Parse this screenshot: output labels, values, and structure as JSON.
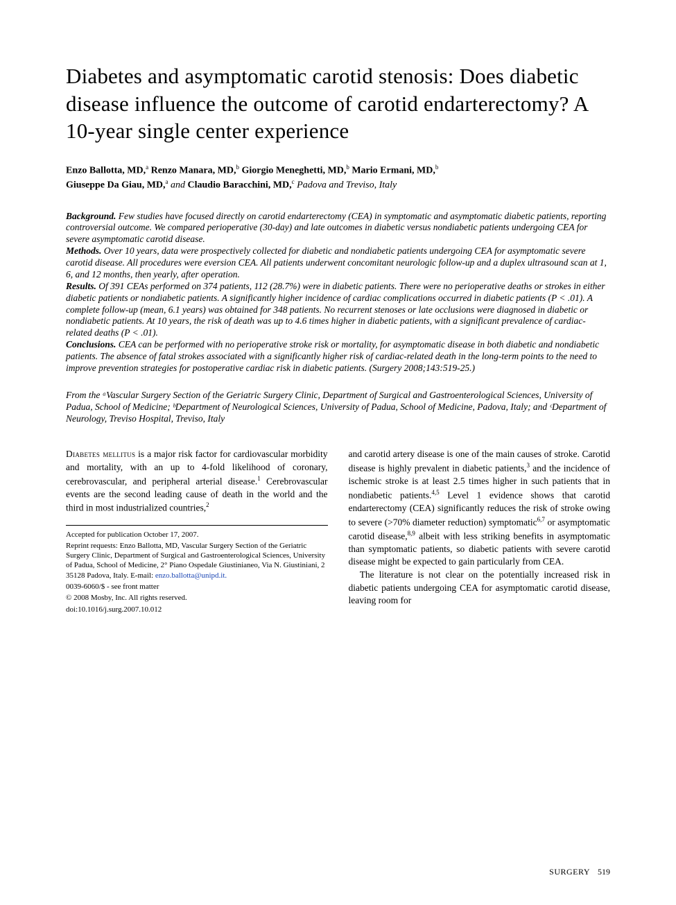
{
  "title": "Diabetes and asymptomatic carotid stenosis: Does diabetic disease influence the outcome of carotid endarterectomy? A 10-year single center experience",
  "authors_line_1": "Enzo Ballotta, MD,",
  "authors_aff_a": "a",
  "authors_line_2": " Renzo Manara, MD,",
  "authors_aff_b": "b",
  "authors_line_3": " Giorgio Meneghetti, MD,",
  "authors_line_4": " Mario Ermani, MD,",
  "authors_line_5": "Giuseppe Da Giau, MD,",
  "authors_and": " and ",
  "authors_line_6": "Claudio Baracchini, MD,",
  "authors_aff_c": "c",
  "authors_loc": " Padova and Treviso, Italy",
  "abstract": {
    "bg_head": "Background.",
    "bg_text": " Few studies have focused directly on carotid endarterectomy (CEA) in symptomatic and asymptomatic diabetic patients, reporting controversial outcome. We compared perioperative (30-day) and late outcomes in diabetic versus nondiabetic patients undergoing CEA for severe asymptomatic carotid disease.",
    "mt_head": "Methods.",
    "mt_text": " Over 10 years, data were prospectively collected for diabetic and nondiabetic patients undergoing CEA for asymptomatic severe carotid disease. All procedures were eversion CEA. All patients underwent concomitant neurologic follow-up and a duplex ultrasound scan at 1, 6, and 12 months, then yearly, after operation.",
    "rs_head": "Results.",
    "rs_text": " Of 391 CEAs performed on 374 patients, 112 (28.7%) were in diabetic patients. There were no perioperative deaths or strokes in either diabetic patients or nondiabetic patients. A significantly higher incidence of cardiac complications occurred in diabetic patients (P < .01). A complete follow-up (mean, 6.1 years) was obtained for 348 patients. No recurrent stenoses or late occlusions were diagnosed in diabetic or nondiabetic patients. At 10 years, the risk of death was up to 4.6 times higher in diabetic patients, with a significant prevalence of cardiac-related deaths (P < .01).",
    "cn_head": "Conclusions.",
    "cn_text": " CEA can be performed with no perioperative stroke risk or mortality, for asymptomatic disease in both diabetic and nondiabetic patients. The absence of fatal strokes associated with a significantly higher risk of cardiac-related death in the long-term points to the need to improve prevention strategies for postoperative cardiac risk in diabetic patients. (Surgery 2008;143:519-25.)"
  },
  "affiliations": "From the ᵃVascular Surgery Section of the Geriatric Surgery Clinic, Department of Surgical and Gastroenterological Sciences, University of Padua, School of Medicine; ᵇDepartment of Neurological Sciences, University of Padua, School of Medicine, Padova, Italy; and ᶜDepartment of Neurology, Treviso Hospital, Treviso, Italy",
  "body": {
    "col1_lead": "Diabetes mellitus",
    "col1_p1": " is a major risk factor for cardiovascular morbidity and mortality, with an up to 4-fold likelihood of coronary, cerebrovascular, and peripheral arterial disease.",
    "col1_sup1": "1",
    "col1_p1b": " Cerebrovascular events are the second leading cause of death in the world and the third in most industrialized countries,",
    "col1_sup2": "2",
    "col2_p1a": "and carotid artery disease is one of the main causes of stroke. Carotid disease is highly prevalent in diabetic patients,",
    "col2_sup3": "3",
    "col2_p1b": " and the incidence of ischemic stroke is at least 2.5 times higher in such patients that in nondiabetic patients.",
    "col2_sup45": "4,5",
    "col2_p1c": " Level 1 evidence shows that carotid endarterectomy (CEA) significantly reduces the risk of stroke owing to severe (>70% diameter reduction) symptomatic",
    "col2_sup67": "6,7",
    "col2_p1d": " or asymptomatic carotid disease,",
    "col2_sup89": "8,9",
    "col2_p1e": " albeit with less striking benefits in asymptomatic than symptomatic patients, so diabetic patients with severe carotid disease might be expected to gain particularly from CEA.",
    "col2_p2": "The literature is not clear on the potentially increased risk in diabetic patients undergoing CEA for asymptomatic carotid disease, leaving room for"
  },
  "footnotes": {
    "accepted": "Accepted for publication October 17, 2007.",
    "reprint": "Reprint requests: Enzo Ballotta, MD, Vascular Surgery Section of the Geriatric Surgery Clinic, Department of Surgical and Gastroenterological Sciences, University of Padua, School of Medicine, 2° Piano Ospedale Giustinianeo, Via N. Giustiniani, 2 35128 Padova, Italy. E-mail: ",
    "email": "enzo.ballotta@unipd.it.",
    "issn": "0039-6060/$ - see front matter",
    "copyright": "© 2008 Mosby, Inc. All rights reserved.",
    "doi": "doi:10.1016/j.surg.2007.10.012"
  },
  "footer": {
    "journal": "SURGERY",
    "page": "519"
  }
}
